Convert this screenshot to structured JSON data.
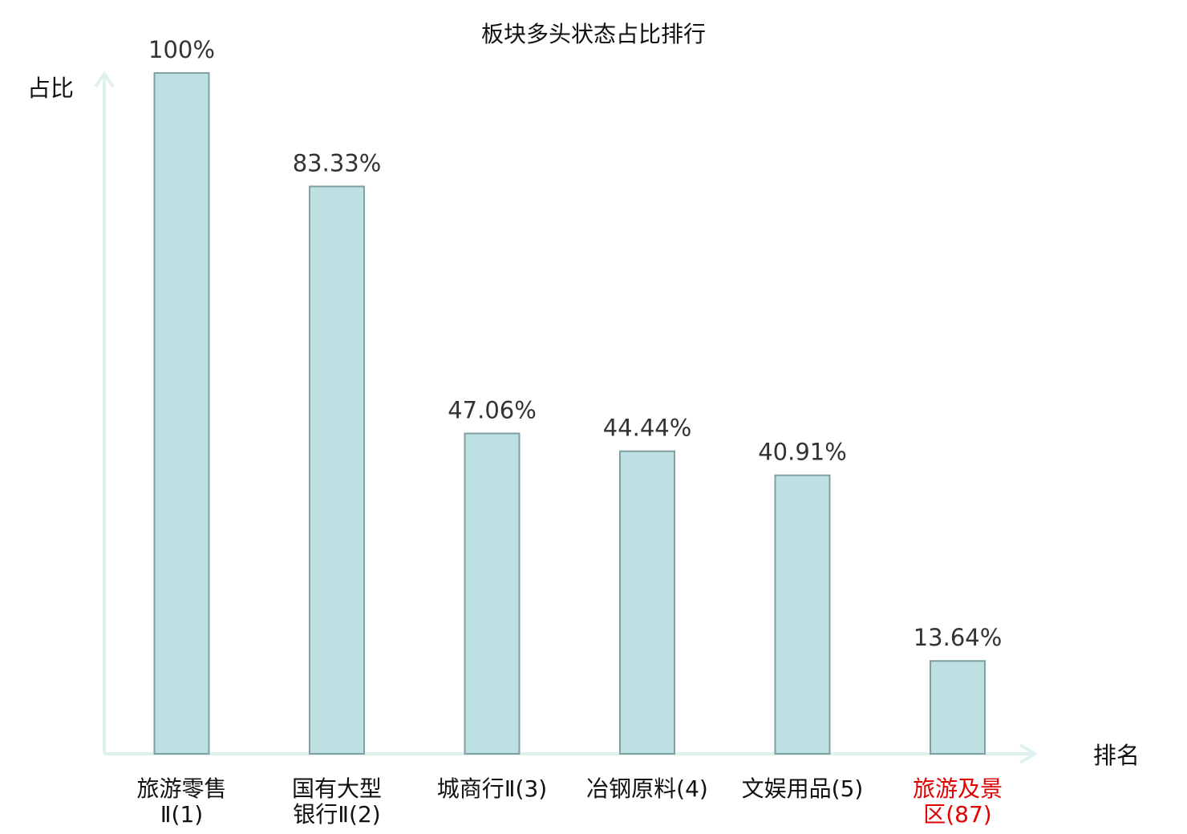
{
  "chart_data": {
    "type": "bar",
    "title": "板块多头状态占比排行",
    "ylabel": "占比",
    "xlabel": "排名",
    "ylim": [
      0,
      100
    ],
    "grid": false,
    "bar_color": "#bde0e2",
    "bar_edge_color": "#7f9fa3",
    "axis_color": "#dff1ef",
    "highlight_color": "#e00000",
    "categories": [
      {
        "lines": [
          "旅游零售",
          "Ⅱ(1)"
        ],
        "highlight": false
      },
      {
        "lines": [
          "国有大型",
          "银行Ⅱ(2)"
        ],
        "highlight": false
      },
      {
        "lines": [
          "城商行Ⅱ(3)"
        ],
        "highlight": false
      },
      {
        "lines": [
          "冶钢原料(4)"
        ],
        "highlight": false
      },
      {
        "lines": [
          "文娱用品(5)"
        ],
        "highlight": false
      },
      {
        "lines": [
          "旅游及景",
          "区(87)"
        ],
        "highlight": true
      }
    ],
    "values": [
      100,
      83.33,
      47.06,
      44.44,
      40.91,
      13.64
    ],
    "value_labels": [
      "100%",
      "83.33%",
      "47.06%",
      "44.44%",
      "40.91%",
      "13.64%"
    ]
  }
}
